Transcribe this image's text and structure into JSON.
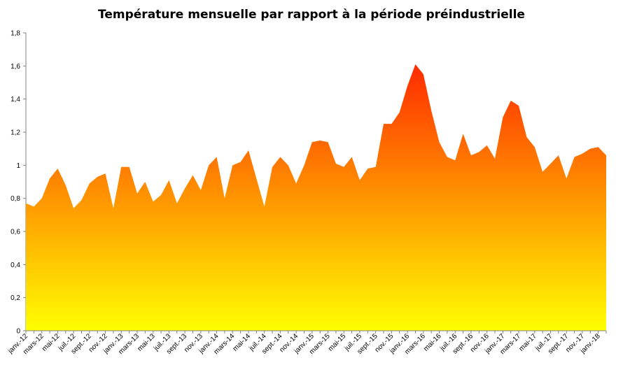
{
  "chart_data": {
    "type": "area",
    "title": "Température mensuelle par rapport à la période préindustrielle",
    "xlabel": "",
    "ylabel": "",
    "ylim": [
      0,
      1.8
    ],
    "y_ticks": [
      "0",
      "0,2",
      "0,4",
      "0,6",
      "0,8",
      "1",
      "1,2",
      "1,4",
      "1,6",
      "1,8"
    ],
    "y_tick_values": [
      0,
      0.2,
      0.4,
      0.6,
      0.8,
      1.0,
      1.2,
      1.4,
      1.6,
      1.8
    ],
    "grid": false,
    "legend": "none",
    "x_tick_labels": [
      "janv.-12",
      "mars-12",
      "mai-12",
      "juil.-12",
      "sept.-12",
      "nov.-12",
      "janv.-13",
      "mars-13",
      "mai-13",
      "juil.-13",
      "sept.-13",
      "nov.-13",
      "janv.-14",
      "mars-14",
      "mai-14",
      "juil.-14",
      "sept.-14",
      "nov.-14",
      "janv.-15",
      "mars-15",
      "mai-15",
      "juil.-15",
      "sept.-15",
      "nov.-15",
      "janv.-16",
      "mars-16",
      "mai-16",
      "juil.-16",
      "sept.-16",
      "nov.-16",
      "janv.-17",
      "mars-17",
      "mai-17",
      "juil.-17",
      "sept.-17",
      "nov.-17",
      "janv.-18"
    ],
    "x_tick_every": 2,
    "fill_gradient": {
      "top": "#ff2a00",
      "bottom": "#ffff00"
    },
    "values": [
      0.77,
      0.75,
      0.8,
      0.92,
      0.98,
      0.88,
      0.74,
      0.79,
      0.89,
      0.93,
      0.95,
      0.74,
      0.99,
      0.99,
      0.83,
      0.9,
      0.78,
      0.82,
      0.91,
      0.77,
      0.86,
      0.94,
      0.85,
      1.0,
      1.05,
      0.8,
      1.0,
      1.02,
      1.09,
      0.92,
      0.75,
      0.99,
      1.05,
      1.0,
      0.89,
      1.0,
      1.14,
      1.15,
      1.14,
      1.01,
      0.99,
      1.05,
      0.91,
      0.98,
      0.99,
      1.25,
      1.25,
      1.32,
      1.48,
      1.61,
      1.55,
      1.33,
      1.14,
      1.05,
      1.03,
      1.19,
      1.06,
      1.08,
      1.12,
      1.04,
      1.29,
      1.39,
      1.36,
      1.17,
      1.11,
      0.96,
      1.01,
      1.06,
      0.92,
      1.05,
      1.07,
      1.1,
      1.11,
      1.06
    ]
  }
}
